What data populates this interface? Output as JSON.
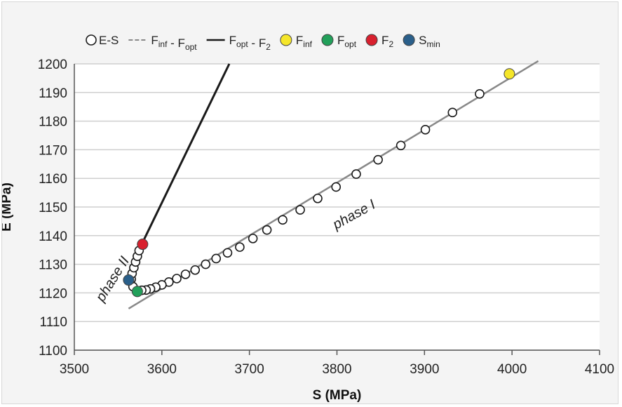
{
  "chart_data": {
    "type": "scatter",
    "xlabel": "S (MPa)",
    "ylabel": "E (MPa)",
    "xlim": [
      3500,
      4100
    ],
    "ylim": [
      1100,
      1200
    ],
    "x_ticks": [
      3500,
      3600,
      3700,
      3800,
      3900,
      4000,
      4100
    ],
    "y_ticks": [
      1100,
      1110,
      1120,
      1130,
      1140,
      1150,
      1160,
      1170,
      1180,
      1190,
      1200
    ],
    "grid": "horizontal",
    "legend_position": "top",
    "legend": [
      {
        "id": "es",
        "label": "E-S",
        "kind": "open-marker",
        "color": "#ffffff"
      },
      {
        "id": "inf_opt",
        "label": "F_inf - F_opt",
        "kind": "dashed-line",
        "color": "#888888"
      },
      {
        "id": "opt_f2",
        "label": "F_opt - F_2",
        "kind": "solid-line",
        "color": "#1a1a1a"
      },
      {
        "id": "finf",
        "label": "F_inf",
        "kind": "marker",
        "color": "#f5e62a"
      },
      {
        "id": "fopt",
        "label": "F_opt",
        "kind": "marker",
        "color": "#22a05a"
      },
      {
        "id": "f2",
        "label": "F_2",
        "kind": "marker",
        "color": "#d8202e"
      },
      {
        "id": "smin",
        "label": "S_min",
        "kind": "marker",
        "color": "#2a5f8a"
      }
    ],
    "series": [
      {
        "name": "E-S",
        "kind": "open-marker",
        "points": [
          [
            3963,
            1189.5
          ],
          [
            3932,
            1183
          ],
          [
            3901,
            1177
          ],
          [
            3873,
            1171.5
          ],
          [
            3847,
            1166.5
          ],
          [
            3822,
            1161.5
          ],
          [
            3799,
            1157
          ],
          [
            3778,
            1153
          ],
          [
            3758,
            1149
          ],
          [
            3738,
            1145.5
          ],
          [
            3720,
            1142
          ],
          [
            3704,
            1139
          ],
          [
            3689,
            1136
          ],
          [
            3675,
            1134
          ],
          [
            3662,
            1132
          ],
          [
            3650,
            1130
          ],
          [
            3638,
            1128
          ],
          [
            3627,
            1126.5
          ],
          [
            3617,
            1125
          ],
          [
            3608,
            1123.8
          ],
          [
            3600,
            1122.8
          ],
          [
            3593,
            1122
          ],
          [
            3587,
            1121.4
          ],
          [
            3582,
            1121
          ],
          [
            3577,
            1120.9
          ],
          [
            3567,
            1122.2
          ],
          [
            3565,
            1124.8
          ],
          [
            3566,
            1126.8
          ],
          [
            3568,
            1128.8
          ],
          [
            3570,
            1130.8
          ],
          [
            3572,
            1132.8
          ],
          [
            3574,
            1134.8
          ],
          [
            3577,
            1137
          ]
        ]
      },
      {
        "name": "F_inf - F_opt",
        "kind": "line",
        "color": "#888888",
        "points": [
          [
            3562,
            1114.5
          ],
          [
            4030,
            1201
          ]
        ]
      },
      {
        "name": "F_opt - F_2",
        "kind": "line",
        "color": "#1a1a1a",
        "points": [
          [
            3577,
            1137
          ],
          [
            3677,
            1200
          ]
        ]
      },
      {
        "name": "F_inf",
        "kind": "marker",
        "color": "#f5e62a",
        "points": [
          [
            3997,
            1196.5
          ]
        ]
      },
      {
        "name": "F_opt",
        "kind": "marker",
        "color": "#22a05a",
        "points": [
          [
            3572,
            1120.5
          ]
        ]
      },
      {
        "name": "F_2",
        "kind": "marker",
        "color": "#d8202e",
        "points": [
          [
            3578,
            1137
          ]
        ]
      },
      {
        "name": "S_min",
        "kind": "marker",
        "color": "#2a5f8a",
        "points": [
          [
            3562,
            1124.5
          ]
        ]
      }
    ],
    "annotations": [
      {
        "text": "phase I",
        "x": 3822,
        "y": 1146,
        "rotate": -29
      },
      {
        "text": "phase II",
        "x": 3548,
        "y": 1124,
        "rotate": -58
      }
    ]
  }
}
